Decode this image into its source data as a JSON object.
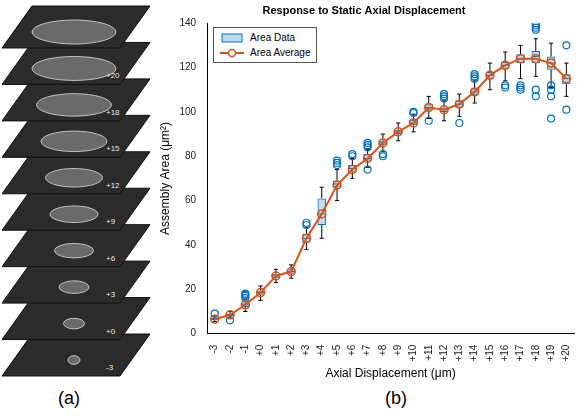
{
  "panel_a": {
    "letter": "(a)",
    "slice_labels": [
      "+20",
      "+18",
      "+15",
      "+12",
      "+9",
      "+6",
      "+3",
      "+0",
      "-3"
    ]
  },
  "panel_b_letter": "(b)",
  "chart_data": {
    "type": "box",
    "title": "Response to Static Axial Displacement",
    "x_label": "Axial Displacement (μm)",
    "y_label": "Assembly Area (μm²)",
    "categories": [
      "-3",
      "-2",
      "-1",
      "+0",
      "+1",
      "+2",
      "+3",
      "+4",
      "+5",
      "+6",
      "+7",
      "+8",
      "+9",
      "+10",
      "+11",
      "+12",
      "+13",
      "+14",
      "+15",
      "+16",
      "+17",
      "+18",
      "+19",
      "+20"
    ],
    "series": [
      {
        "name": "Area Data",
        "type": "box",
        "color": "#0072BD",
        "marker": "circle",
        "box": [
          {
            "min": 5.5,
            "q1": 6,
            "median": 6.5,
            "q3": 7,
            "max": 8,
            "outliers": [
              9
            ]
          },
          {
            "min": 7,
            "q1": 8,
            "median": 8.5,
            "q3": 9,
            "max": 10,
            "outliers": [
              6
            ]
          },
          {
            "min": 10,
            "q1": 12,
            "median": 13,
            "q3": 14,
            "max": 15.5,
            "outliers": [
              16,
              17,
              17.5,
              18
            ]
          },
          {
            "min": 15,
            "q1": 17.5,
            "median": 18.5,
            "q3": 19.5,
            "max": 21.5,
            "outliers": []
          },
          {
            "min": 23,
            "q1": 25,
            "median": 26,
            "q3": 27,
            "max": 29,
            "outliers": []
          },
          {
            "min": 25,
            "q1": 27,
            "median": 28,
            "q3": 29,
            "max": 31,
            "outliers": []
          },
          {
            "min": 38,
            "q1": 41,
            "median": 43,
            "q3": 45,
            "max": 48,
            "outliers": [
              49,
              50
            ]
          },
          {
            "min": 43,
            "q1": 49,
            "median": 54,
            "q3": 61,
            "max": 66,
            "outliers": []
          },
          {
            "min": 60,
            "q1": 66,
            "median": 67.5,
            "q3": 69,
            "max": 74,
            "outliers": [
              76,
              77,
              78
            ]
          },
          {
            "min": 70,
            "q1": 73,
            "median": 74.5,
            "q3": 76,
            "max": 79,
            "outliers": [
              80,
              81
            ]
          },
          {
            "min": 75,
            "q1": 78,
            "median": 79,
            "q3": 81,
            "max": 83,
            "outliers": [
              74,
              84,
              85,
              86
            ]
          },
          {
            "min": 82,
            "q1": 85,
            "median": 86,
            "q3": 87,
            "max": 90,
            "outliers": [
              80,
              81
            ]
          },
          {
            "min": 87,
            "q1": 90,
            "median": 91,
            "q3": 92,
            "max": 95,
            "outliers": []
          },
          {
            "min": 91,
            "q1": 94,
            "median": 95,
            "q3": 96.5,
            "max": 99,
            "outliers": [
              99.5,
              100
            ]
          },
          {
            "min": 97,
            "q1": 101,
            "median": 102,
            "q3": 103.5,
            "max": 107,
            "outliers": [
              96
            ]
          },
          {
            "min": 96,
            "q1": 100,
            "median": 101,
            "q3": 102,
            "max": 105,
            "outliers": [
              106,
              107,
              108
            ]
          },
          {
            "min": 98,
            "q1": 102,
            "median": 103.5,
            "q3": 105,
            "max": 108,
            "outliers": [
              95
            ]
          },
          {
            "min": 104,
            "q1": 107.5,
            "median": 109,
            "q3": 110.5,
            "max": 114,
            "outliers": [
              115,
              116,
              117
            ]
          },
          {
            "min": 110,
            "q1": 115,
            "median": 116.5,
            "q3": 118,
            "max": 122,
            "outliers": []
          },
          {
            "min": 114,
            "q1": 119.5,
            "median": 121,
            "q3": 122.5,
            "max": 127,
            "outliers": [
              111,
              112
            ]
          },
          {
            "min": 115,
            "q1": 122,
            "median": 124,
            "q3": 126,
            "max": 130,
            "outliers": [
              110,
              111,
              112
            ]
          },
          {
            "min": 116,
            "q1": 122,
            "median": 125,
            "q3": 127.5,
            "max": 133,
            "outliers": [
              107,
              110,
              137,
              138,
              139,
              140
            ]
          },
          {
            "min": 111,
            "q1": 119,
            "median": 122,
            "q3": 125,
            "max": 131,
            "outliers": [
              97,
              107,
              110,
              112
            ]
          },
          {
            "min": 107,
            "q1": 112.5,
            "median": 115,
            "q3": 117,
            "max": 122,
            "outliers": [
              101,
              130
            ]
          }
        ]
      },
      {
        "name": "Area Average",
        "type": "line",
        "color": "#D95319",
        "marker": "circle",
        "line_style": "solid",
        "values": [
          6.5,
          8.5,
          13,
          18.5,
          26,
          28,
          43,
          54,
          67,
          74,
          79,
          86,
          91,
          95,
          102,
          101,
          103.5,
          109,
          116.5,
          121,
          124,
          124,
          122,
          115
        ]
      }
    ],
    "ylim": [
      0,
      140
    ],
    "yticks": [
      0,
      20,
      40,
      60,
      80,
      100,
      120,
      140
    ],
    "grid": false,
    "legend": "top-left"
  }
}
